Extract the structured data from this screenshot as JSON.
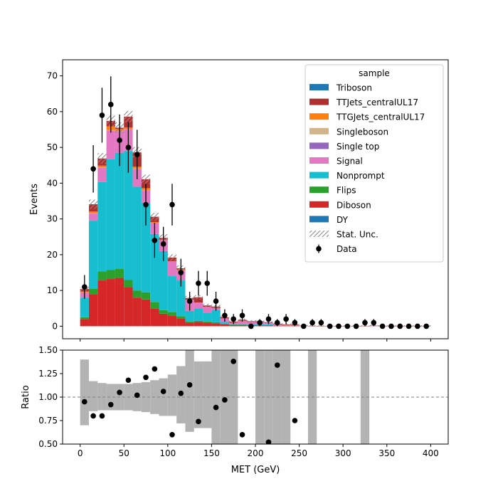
{
  "figure": {
    "background": "#ffffff"
  },
  "chart_data": {
    "type": "bar",
    "stacked": true,
    "bin_edges": [
      0,
      10,
      20,
      30,
      40,
      50,
      60,
      70,
      80,
      90,
      100,
      110,
      120,
      130,
      140,
      150,
      160,
      170,
      180,
      190,
      200,
      210,
      220,
      230,
      240,
      250,
      260,
      270,
      280,
      290,
      300,
      310,
      320,
      330,
      340,
      350,
      360,
      370,
      380,
      390,
      400
    ],
    "xlabel": "MET (GeV)",
    "ylabel": "Events",
    "ratio_ylabel": "Ratio",
    "xlim": [
      -20,
      420
    ],
    "ylim": [
      -3.5,
      74.5
    ],
    "ratio_ylim": [
      0.5,
      1.5
    ],
    "xticks": [
      0,
      50,
      100,
      150,
      200,
      250,
      300,
      350,
      400
    ],
    "xtick_labels": [
      "0",
      "50",
      "100",
      "150",
      "200",
      "250",
      "300",
      "350",
      "400"
    ],
    "yticks": [
      0,
      10,
      20,
      30,
      40,
      50,
      60,
      70
    ],
    "ytick_labels": [
      "0",
      "10",
      "20",
      "30",
      "40",
      "50",
      "60",
      "70"
    ],
    "ratio_yticks": [
      0.5,
      0.75,
      1.0,
      1.25,
      1.5
    ],
    "ratio_ytick_labels": [
      "0.50",
      "0.75",
      "1.00",
      "1.25",
      "1.50"
    ],
    "ratio_reference": 1.0,
    "legend": {
      "title": "sample",
      "position": "upper right"
    },
    "series": [
      {
        "name": "Diboson",
        "color": "#d62728",
        "values": [
          2.0,
          9.0,
          12.8,
          13.2,
          13.5,
          11.0,
          8.0,
          7.5,
          5.0,
          3.5,
          3.0,
          2.2,
          1.0,
          1.2,
          1.0,
          0.8,
          0.5,
          0.3,
          0.3,
          0.2,
          0.2,
          0.2,
          0.1,
          0.1,
          0.1,
          0,
          0,
          0,
          0,
          0,
          0,
          0,
          0,
          0,
          0,
          0,
          0,
          0,
          0,
          0
        ]
      },
      {
        "name": "Flips",
        "color": "#2ca02c",
        "values": [
          0.5,
          1.5,
          2.5,
          2.5,
          2.5,
          2.0,
          2.0,
          2.0,
          1.8,
          1.0,
          1.0,
          0.6,
          0.3,
          0.3,
          0.3,
          0.3,
          0.2,
          0.1,
          0.1,
          0.1,
          0.1,
          0.1,
          0,
          0,
          0,
          0,
          0,
          0,
          0,
          0,
          0,
          0,
          0,
          0,
          0,
          0,
          0,
          0,
          0,
          0
        ]
      },
      {
        "name": "Nonprompt",
        "color": "#17becf",
        "values": [
          5.5,
          19.0,
          25.0,
          31.0,
          32.5,
          36.0,
          29.0,
          25.0,
          19.0,
          16.5,
          10.0,
          10.0,
          3.0,
          3.5,
          2.5,
          3.5,
          0.5,
          0.3,
          0.3,
          0.3,
          0.3,
          0.2,
          0.2,
          0.1,
          0.1,
          0,
          0,
          0,
          0,
          0,
          0,
          0,
          0,
          0,
          0,
          0,
          0,
          0,
          0,
          0
        ]
      },
      {
        "name": "Signal",
        "color": "#e377c2",
        "values": [
          1.5,
          2.0,
          4.0,
          8.0,
          6.0,
          6.0,
          5.0,
          3.5,
          3.0,
          3.0,
          4.0,
          3.0,
          3.0,
          1.5,
          1.5,
          0.5,
          1.0,
          0.3,
          0.8,
          0.6,
          0.6,
          0.4,
          0.2,
          0.1,
          0.1,
          0.1,
          0,
          0,
          0,
          0,
          0,
          0,
          0,
          0.1,
          0,
          0,
          0,
          0,
          0,
          0
        ]
      },
      {
        "name": "Single top",
        "color": "#9467bd",
        "values": [
          0,
          0,
          0,
          0,
          0,
          0,
          0,
          0,
          0,
          0,
          0,
          0,
          0,
          0,
          0,
          0,
          0,
          0,
          0,
          0,
          0,
          0,
          0,
          0,
          0,
          0,
          0,
          0,
          0,
          0,
          0,
          0,
          0,
          0,
          0,
          0,
          0,
          0,
          0,
          0
        ]
      },
      {
        "name": "Singleboson",
        "color": "#d2b48c",
        "values": [
          0,
          0.1,
          0.1,
          0.2,
          0.2,
          0.1,
          0.1,
          0.1,
          0,
          0,
          0,
          0,
          0,
          0,
          0,
          0,
          0,
          0,
          0,
          0,
          0,
          0,
          0,
          0,
          0,
          0,
          0,
          0,
          0,
          0,
          0,
          0,
          0,
          0,
          0,
          0,
          0,
          0,
          0,
          0
        ]
      },
      {
        "name": "TTGJets_centralUL17",
        "color": "#ff7f0e",
        "values": [
          0.2,
          0.5,
          0.5,
          1.0,
          0.5,
          0.5,
          0.5,
          0.5,
          0.3,
          0.2,
          0.2,
          0.1,
          0.1,
          0.1,
          0.1,
          0,
          0,
          0,
          0,
          0,
          0,
          0,
          0,
          0,
          0,
          0,
          0,
          0,
          0,
          0,
          0,
          0,
          0,
          0,
          0,
          0,
          0,
          0,
          0,
          0
        ]
      },
      {
        "name": "TTJets_centralUL17",
        "color": "#b03030",
        "values": [
          0.7,
          2.0,
          2.0,
          1.5,
          0.3,
          3.0,
          4.0,
          2.5,
          1.5,
          0.5,
          1.0,
          0.3,
          0.5,
          1.5,
          0.4,
          0.4,
          0.3,
          0.3,
          0.3,
          0.2,
          0.2,
          0.2,
          0.2,
          0.2,
          0.2,
          0.1,
          0.1,
          0.1,
          0.1,
          0.1,
          0.1,
          0.1,
          0.1,
          0.1,
          0.1,
          0.1,
          0.1,
          0.1,
          0.1,
          0.1
        ]
      },
      {
        "name": "Triboson",
        "color": "#1f77b4",
        "values": [
          0,
          0,
          0,
          0,
          0,
          0,
          0,
          0,
          0,
          0,
          0,
          0,
          0,
          0,
          0,
          0,
          0,
          0,
          0,
          0,
          0,
          0,
          0,
          0,
          0,
          0,
          0,
          0,
          0,
          0,
          0,
          0,
          0,
          0,
          0,
          0,
          0,
          0,
          0,
          0
        ]
      },
      {
        "name": "DY",
        "color": "#1f77b4",
        "values": [
          0,
          0,
          0,
          0,
          0,
          0,
          0,
          0,
          0,
          0,
          0,
          0,
          0,
          0,
          0,
          0,
          0,
          0,
          0,
          0,
          0,
          0,
          0,
          0,
          0,
          0,
          0,
          0,
          0,
          0,
          0,
          0,
          0,
          0,
          0,
          0,
          0,
          0,
          0,
          0
        ]
      }
    ],
    "legend_entries": [
      "Triboson",
      "TTJets_centralUL17",
      "TTGJets_centralUL17",
      "Singleboson",
      "Single top",
      "Signal",
      "Nonprompt",
      "Flips",
      "Diboson",
      "DY",
      "Stat. Unc.",
      "Data"
    ],
    "stat_unc": {
      "name": "Stat. Unc.",
      "values": [
        0.6,
        1.3,
        1.5,
        1.5,
        1.5,
        1.6,
        1.5,
        1.3,
        1.1,
        1.0,
        0.9,
        0.8,
        0.6,
        0.6,
        0.5,
        0.5,
        0.4,
        0.3,
        0.3,
        0.3,
        0.3,
        0.3,
        0.3,
        0.3,
        0.3,
        0.2,
        0.2,
        0.2,
        0.2,
        0.2,
        0.2,
        0.2,
        0.2,
        0.2,
        0.2,
        0.2,
        0.2,
        0.2,
        0.2,
        0.2
      ]
    },
    "data": {
      "name": "Data",
      "x": [
        5,
        15,
        25,
        35,
        45,
        55,
        65,
        75,
        85,
        95,
        105,
        115,
        125,
        135,
        145,
        155,
        165,
        175,
        185,
        195,
        205,
        215,
        225,
        235,
        245,
        255,
        265,
        275,
        285,
        295,
        305,
        315,
        325,
        335,
        345,
        355,
        365,
        375,
        385,
        395
      ],
      "y": [
        11,
        44,
        59,
        62,
        52,
        50,
        48,
        34,
        24,
        23,
        34,
        15,
        7,
        12,
        12,
        7,
        3,
        2,
        3,
        0,
        1,
        2,
        1,
        2,
        1,
        0,
        1,
        1,
        0,
        0,
        0,
        0,
        1,
        1,
        0,
        0,
        0,
        0,
        0,
        0
      ]
    },
    "ratio_points": [
      {
        "x": 5,
        "y": 0.95
      },
      {
        "x": 15,
        "y": 0.8
      },
      {
        "x": 25,
        "y": 0.8
      },
      {
        "x": 35,
        "y": 0.92
      },
      {
        "x": 45,
        "y": 1.05
      },
      {
        "x": 55,
        "y": 1.18
      },
      {
        "x": 65,
        "y": 1.02
      },
      {
        "x": 75,
        "y": 1.21
      },
      {
        "x": 85,
        "y": 1.3
      },
      {
        "x": 95,
        "y": 1.06
      },
      {
        "x": 105,
        "y": 0.6
      },
      {
        "x": 115,
        "y": 1.04
      },
      {
        "x": 125,
        "y": 1.13
      },
      {
        "x": 135,
        "y": 0.74
      },
      {
        "x": 155,
        "y": 0.89
      },
      {
        "x": 165,
        "y": 0.97
      },
      {
        "x": 175,
        "y": 1.38
      },
      {
        "x": 185,
        "y": 0.6
      },
      {
        "x": 215,
        "y": 0.52
      },
      {
        "x": 225,
        "y": 1.34
      },
      {
        "x": 245,
        "y": 0.75
      }
    ],
    "ratio_band": [
      {
        "lo": 0.7,
        "hi": 1.4
      },
      {
        "lo": 0.85,
        "hi": 1.17
      },
      {
        "lo": 0.86,
        "hi": 1.15
      },
      {
        "lo": 0.86,
        "hi": 1.14
      },
      {
        "lo": 0.86,
        "hi": 1.14
      },
      {
        "lo": 0.86,
        "hi": 1.14
      },
      {
        "lo": 0.85,
        "hi": 1.15
      },
      {
        "lo": 0.84,
        "hi": 1.16
      },
      {
        "lo": 0.82,
        "hi": 1.18
      },
      {
        "lo": 0.8,
        "hi": 1.2
      },
      {
        "lo": 0.8,
        "hi": 1.24
      },
      {
        "lo": 0.72,
        "hi": 1.33
      },
      {
        "lo": 0.63,
        "hi": 1.5
      },
      {
        "lo": 0.67,
        "hi": 1.38
      },
      {
        "lo": 0.67,
        "hi": 1.38
      },
      {
        "lo": 0.5,
        "hi": 1.5
      },
      {
        "lo": 0.5,
        "hi": 1.5
      },
      {
        "lo": 0.5,
        "hi": 1.5
      },
      null,
      null,
      {
        "lo": 0.5,
        "hi": 1.5
      },
      {
        "lo": 0.5,
        "hi": 1.5
      },
      {
        "lo": 0.5,
        "hi": 1.5
      },
      {
        "lo": 0.5,
        "hi": 1.5
      },
      null,
      null,
      {
        "lo": 0.5,
        "hi": 1.5
      },
      null,
      null,
      null,
      null,
      null,
      {
        "lo": 0.5,
        "hi": 1.5
      },
      null,
      null,
      null,
      null,
      null,
      null,
      null
    ]
  }
}
